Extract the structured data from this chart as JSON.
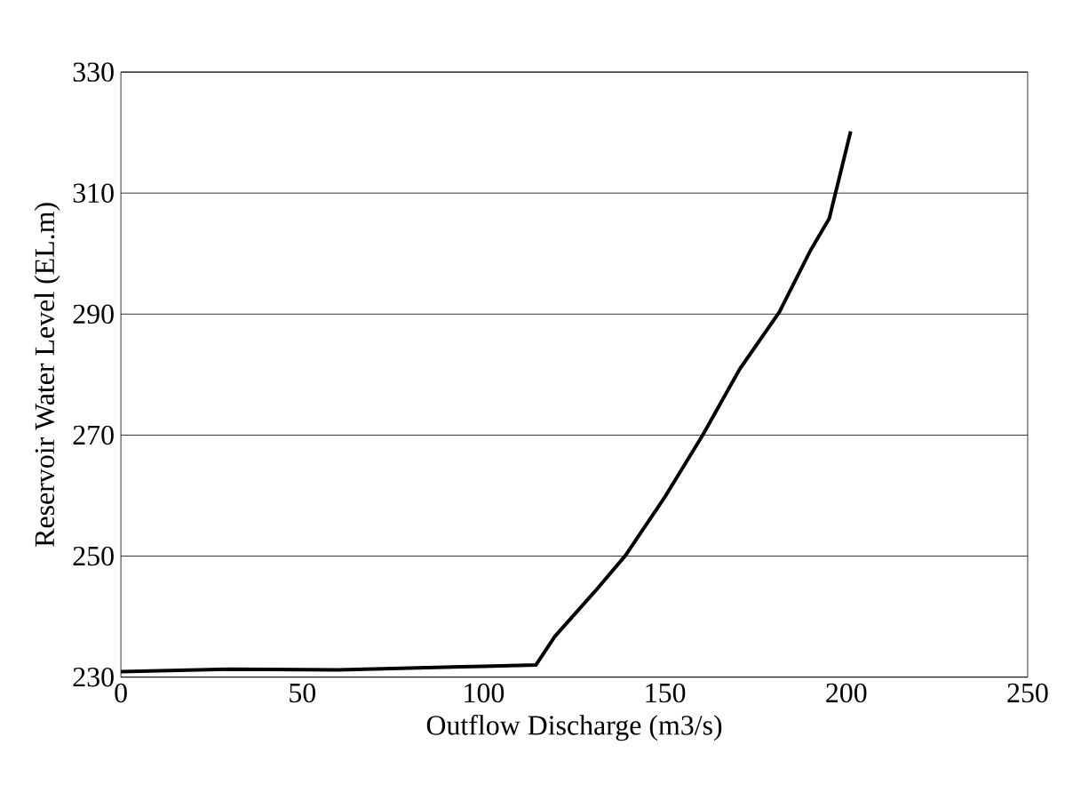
{
  "chart_data": {
    "type": "line",
    "xlabel": "Outflow Discharge (m3/s)",
    "ylabel": "Reservoir Water Level (EL.m)",
    "x": [
      0,
      30,
      60,
      100,
      114.4,
      119.6,
      130.6,
      139.1,
      150,
      160.4,
      170.6,
      181.6,
      190,
      195.3,
      201.2
    ],
    "values": [
      230.9,
      231.3,
      231.2,
      231.8,
      232.0,
      236.7,
      244.1,
      250.1,
      259.8,
      270.0,
      280.9,
      290.4,
      300.4,
      305.8,
      320.2
    ],
    "color": "#000000",
    "xlim": [
      0,
      250
    ],
    "xticks": [
      0,
      50,
      100,
      150,
      200,
      250
    ],
    "ylim": [
      230,
      330
    ],
    "yticks": [
      230,
      250,
      270,
      290,
      310,
      330
    ],
    "grid": "y",
    "marker": "none",
    "line_style": "solid"
  }
}
